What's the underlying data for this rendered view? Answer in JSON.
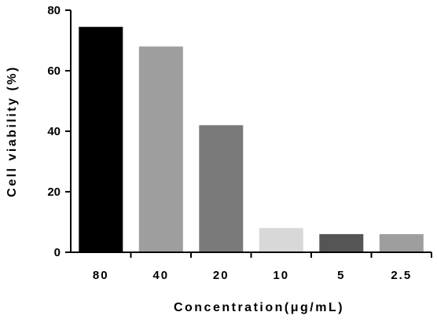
{
  "chart_data": {
    "type": "bar",
    "title": "",
    "xlabel": "Concentration(μg/mL)",
    "ylabel": "Cell viability (%)",
    "categories": [
      "80",
      "40",
      "20",
      "10",
      "5",
      "2.5"
    ],
    "values": [
      74.5,
      68,
      42,
      8,
      6,
      6
    ],
    "bar_colors": [
      "#000000",
      "#9e9e9e",
      "#7a7a7a",
      "#d8d8d8",
      "#555555",
      "#9e9e9e"
    ],
    "ylim": [
      0,
      80
    ],
    "yticks": [
      0,
      20,
      40,
      60,
      80
    ],
    "grid": false,
    "legend": "none"
  }
}
